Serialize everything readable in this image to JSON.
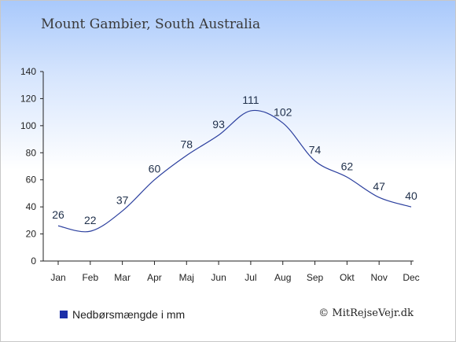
{
  "chart_data": {
    "type": "line",
    "title": "Mount Gambier, South Australia",
    "categories": [
      "Jan",
      "Feb",
      "Mar",
      "Apr",
      "Maj",
      "Jun",
      "Jul",
      "Aug",
      "Sep",
      "Okt",
      "Nov",
      "Dec"
    ],
    "series": [
      {
        "name": "Nedbørsmængde i mm",
        "values": [
          26,
          22,
          37,
          60,
          78,
          93,
          111,
          102,
          74,
          62,
          47,
          40
        ]
      }
    ],
    "ylim": [
      0,
      140
    ],
    "yticks": [
      0,
      20,
      40,
      60,
      80,
      100,
      120,
      140
    ],
    "grid": false,
    "legend_position": "bottom-left",
    "line_color": "#2b3f9e",
    "legend_color": "#1c2fa8"
  },
  "credit": "© MitRejseVejr.dk"
}
